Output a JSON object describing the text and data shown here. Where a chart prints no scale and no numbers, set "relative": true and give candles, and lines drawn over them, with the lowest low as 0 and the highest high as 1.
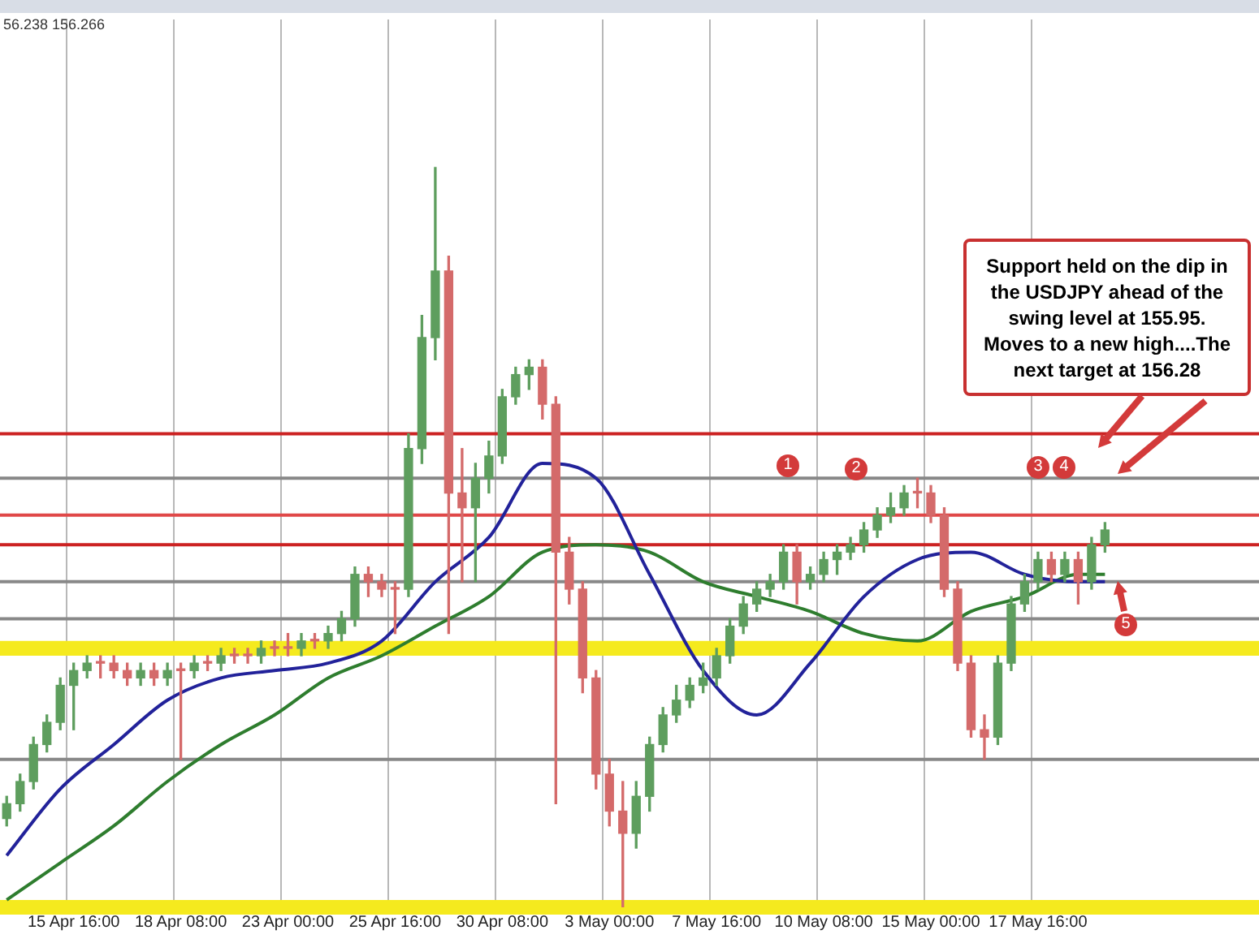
{
  "chart_data": {
    "type": "candlestick",
    "relative": true,
    "legend": false,
    "grid": "x",
    "categories": [
      null,
      null,
      null,
      null,
      null,
      "15 Apr 16:00",
      null,
      null,
      null,
      null,
      null,
      null,
      null,
      "18 Apr 08:00",
      null,
      null,
      null,
      null,
      null,
      null,
      null,
      "23 Apr 00:00",
      null,
      null,
      null,
      null,
      null,
      null,
      null,
      "25 Apr 16:00",
      null,
      null,
      null,
      null,
      null,
      null,
      null,
      "30 Apr 08:00",
      null,
      null,
      null,
      null,
      null,
      null,
      null,
      "3 May 00:00",
      null,
      null,
      null,
      null,
      null,
      null,
      null,
      "7 May 16:00",
      null,
      null,
      null,
      null,
      null,
      null,
      null,
      "10 May 08:00",
      null,
      null,
      null,
      null,
      null,
      null,
      null,
      "15 May 00:00",
      null,
      null,
      null,
      null,
      null,
      null,
      null,
      "17 May 16:00",
      null,
      null,
      null,
      null,
      null,
      null,
      null,
      null,
      null,
      null,
      null,
      null,
      null,
      null,
      null,
      null
    ],
    "ohlc": [
      [
        0.12,
        0.15,
        0.11,
        0.14
      ],
      [
        0.14,
        0.18,
        0.13,
        0.17
      ],
      [
        0.17,
        0.23,
        0.16,
        0.22
      ],
      [
        0.22,
        0.26,
        0.21,
        0.25
      ],
      [
        0.25,
        0.31,
        0.24,
        0.3
      ],
      [
        0.3,
        0.33,
        0.24,
        0.32
      ],
      [
        0.32,
        0.34,
        0.31,
        0.33
      ],
      [
        0.33,
        0.34,
        0.31,
        0.33
      ],
      [
        0.33,
        0.34,
        0.31,
        0.32
      ],
      [
        0.32,
        0.33,
        0.3,
        0.31
      ],
      [
        0.31,
        0.33,
        0.3,
        0.32
      ],
      [
        0.32,
        0.33,
        0.3,
        0.31
      ],
      [
        0.31,
        0.33,
        0.3,
        0.32
      ],
      [
        0.32,
        0.33,
        0.2,
        0.32
      ],
      [
        0.32,
        0.34,
        0.31,
        0.33
      ],
      [
        0.33,
        0.34,
        0.32,
        0.33
      ],
      [
        0.33,
        0.35,
        0.32,
        0.34
      ],
      [
        0.34,
        0.35,
        0.33,
        0.34
      ],
      [
        0.34,
        0.35,
        0.33,
        0.34
      ],
      [
        0.34,
        0.36,
        0.33,
        0.35
      ],
      [
        0.35,
        0.36,
        0.34,
        0.35
      ],
      [
        0.35,
        0.37,
        0.34,
        0.35
      ],
      [
        0.35,
        0.37,
        0.34,
        0.36
      ],
      [
        0.36,
        0.37,
        0.35,
        0.36
      ],
      [
        0.36,
        0.38,
        0.35,
        0.37
      ],
      [
        0.37,
        0.4,
        0.36,
        0.39
      ],
      [
        0.39,
        0.46,
        0.38,
        0.45
      ],
      [
        0.45,
        0.46,
        0.42,
        0.44
      ],
      [
        0.44,
        0.45,
        0.42,
        0.43
      ],
      [
        0.43,
        0.44,
        0.37,
        0.43
      ],
      [
        0.43,
        0.64,
        0.42,
        0.62
      ],
      [
        0.62,
        0.8,
        0.6,
        0.77
      ],
      [
        0.77,
        1,
        0.74,
        0.86
      ],
      [
        0.86,
        0.88,
        0.37,
        0.56
      ],
      [
        0.56,
        0.62,
        0.44,
        0.54
      ],
      [
        0.54,
        0.6,
        0.44,
        0.58
      ],
      [
        0.58,
        0.63,
        0.56,
        0.61
      ],
      [
        0.61,
        0.7,
        0.6,
        0.69
      ],
      [
        0.69,
        0.73,
        0.68,
        0.72
      ],
      [
        0.72,
        0.74,
        0.7,
        0.73
      ],
      [
        0.73,
        0.74,
        0.66,
        0.68
      ],
      [
        0.68,
        0.69,
        0.14,
        0.48
      ],
      [
        0.48,
        0.5,
        0.41,
        0.43
      ],
      [
        0.43,
        0.44,
        0.29,
        0.31
      ],
      [
        0.31,
        0.32,
        0.16,
        0.18
      ],
      [
        0.18,
        0.2,
        0.11,
        0.13
      ],
      [
        0.13,
        0.17,
        0,
        0.1
      ],
      [
        0.1,
        0.17,
        0.08,
        0.15
      ],
      [
        0.15,
        0.23,
        0.13,
        0.22
      ],
      [
        0.22,
        0.27,
        0.21,
        0.26
      ],
      [
        0.26,
        0.3,
        0.25,
        0.28
      ],
      [
        0.28,
        0.31,
        0.27,
        0.3
      ],
      [
        0.3,
        0.33,
        0.29,
        0.31
      ],
      [
        0.31,
        0.35,
        0.3,
        0.34
      ],
      [
        0.34,
        0.39,
        0.33,
        0.38
      ],
      [
        0.38,
        0.42,
        0.37,
        0.41
      ],
      [
        0.41,
        0.44,
        0.4,
        0.43
      ],
      [
        0.43,
        0.45,
        0.42,
        0.44
      ],
      [
        0.44,
        0.49,
        0.43,
        0.48
      ],
      [
        0.48,
        0.49,
        0.41,
        0.44
      ],
      [
        0.44,
        0.46,
        0.43,
        0.45
      ],
      [
        0.45,
        0.48,
        0.44,
        0.47
      ],
      [
        0.47,
        0.49,
        0.45,
        0.48
      ],
      [
        0.48,
        0.5,
        0.47,
        0.49
      ],
      [
        0.49,
        0.52,
        0.48,
        0.51
      ],
      [
        0.51,
        0.54,
        0.5,
        0.53
      ],
      [
        0.53,
        0.56,
        0.52,
        0.54
      ],
      [
        0.54,
        0.57,
        0.53,
        0.56
      ],
      [
        0.56,
        0.58,
        0.54,
        0.56
      ],
      [
        0.56,
        0.57,
        0.52,
        0.53
      ],
      [
        0.53,
        0.54,
        0.42,
        0.43
      ],
      [
        0.43,
        0.44,
        0.32,
        0.33
      ],
      [
        0.33,
        0.34,
        0.23,
        0.24
      ],
      [
        0.24,
        0.26,
        0.2,
        0.23
      ],
      [
        0.23,
        0.34,
        0.22,
        0.33
      ],
      [
        0.33,
        0.42,
        0.32,
        0.41
      ],
      [
        0.41,
        0.45,
        0.4,
        0.44
      ],
      [
        0.44,
        0.48,
        0.43,
        0.47
      ],
      [
        0.47,
        0.48,
        0.44,
        0.45
      ],
      [
        0.45,
        0.48,
        0.44,
        0.47
      ],
      [
        0.47,
        0.48,
        0.41,
        0.44
      ],
      [
        0.44,
        0.5,
        0.43,
        0.49
      ],
      [
        0.49,
        0.52,
        0.48,
        0.51
      ],
      null,
      null,
      null,
      null,
      null,
      null,
      null,
      null,
      null,
      null,
      null
    ],
    "colors": [
      "#5e9e5e",
      "#5e9e5e",
      "#5e9e5e",
      "#5e9e5e",
      "#5e9e5e",
      "#5e9e5e",
      "#5e9e5e",
      "#d46a6a",
      "#d46a6a",
      "#d46a6a",
      "#5e9e5e",
      "#d46a6a",
      "#5e9e5e",
      "#d46a6a",
      "#5e9e5e",
      "#d46a6a",
      "#5e9e5e",
      "#d46a6a",
      "#d46a6a",
      "#5e9e5e",
      "#d46a6a",
      "#d46a6a",
      "#5e9e5e",
      "#d46a6a",
      "#5e9e5e",
      "#5e9e5e",
      "#5e9e5e",
      "#d46a6a",
      "#d46a6a",
      "#d46a6a",
      "#5e9e5e",
      "#5e9e5e",
      "#5e9e5e",
      "#d46a6a",
      "#d46a6a",
      "#5e9e5e",
      "#5e9e5e",
      "#5e9e5e",
      "#5e9e5e",
      "#5e9e5e",
      "#d46a6a",
      "#d46a6a",
      "#d46a6a",
      "#d46a6a",
      "#d46a6a",
      "#d46a6a",
      "#d46a6a",
      "#5e9e5e",
      "#5e9e5e",
      "#5e9e5e",
      "#5e9e5e",
      "#5e9e5e",
      "#5e9e5e",
      "#5e9e5e",
      "#5e9e5e",
      "#5e9e5e",
      "#5e9e5e",
      "#5e9e5e",
      "#5e9e5e",
      "#d46a6a",
      "#5e9e5e",
      "#5e9e5e",
      "#5e9e5e",
      "#5e9e5e",
      "#5e9e5e",
      "#5e9e5e",
      "#5e9e5e",
      "#5e9e5e",
      "#d46a6a",
      "#d46a6a",
      "#d46a6a",
      "#d46a6a",
      "#d46a6a",
      "#d46a6a",
      "#5e9e5e",
      "#5e9e5e",
      "#5e9e5e",
      "#5e9e5e",
      "#d46a6a",
      "#5e9e5e",
      "#d46a6a",
      "#5e9e5e",
      "#5e9e5e",
      null,
      null,
      null,
      null,
      null,
      null,
      null,
      null,
      null,
      null,
      null
    ],
    "series": [
      {
        "type": "line",
        "color": "#22229a",
        "values": [
          0.07,
          null,
          null,
          null,
          0.16,
          null,
          null,
          null,
          0.22,
          null,
          null,
          null,
          0.28,
          null,
          null,
          null,
          0.31,
          null,
          null,
          null,
          0.32,
          null,
          null,
          null,
          0.33,
          null,
          null,
          null,
          0.36,
          null,
          null,
          null,
          0.44,
          null,
          null,
          null,
          0.5,
          null,
          null,
          null,
          0.6,
          null,
          null,
          null,
          0.58,
          null,
          null,
          null,
          0.45,
          null,
          null,
          null,
          0.32,
          null,
          null,
          null,
          0.26,
          null,
          null,
          null,
          0.33,
          null,
          null,
          null,
          0.42,
          null,
          null,
          null,
          0.47,
          null,
          null,
          null,
          0.48,
          null,
          null,
          null,
          0.45,
          null,
          null,
          null,
          0.44,
          null,
          0.44,
          null,
          null,
          null,
          null,
          null,
          null,
          null,
          null,
          null,
          null,
          null
        ]
      },
      {
        "type": "line",
        "color": "#2e7d2e",
        "values": [
          0.01,
          null,
          null,
          null,
          0.06,
          null,
          null,
          null,
          0.11,
          null,
          null,
          null,
          0.17,
          null,
          null,
          null,
          0.22,
          null,
          null,
          null,
          0.26,
          null,
          null,
          null,
          0.31,
          null,
          null,
          null,
          0.34,
          null,
          null,
          null,
          0.38,
          null,
          null,
          null,
          0.42,
          null,
          null,
          null,
          0.48,
          null,
          null,
          null,
          0.49,
          null,
          null,
          null,
          0.48,
          null,
          null,
          null,
          0.44,
          null,
          null,
          null,
          0.42,
          null,
          null,
          null,
          0.4,
          null,
          null,
          null,
          0.37,
          null,
          null,
          null,
          0.36,
          null,
          null,
          null,
          0.4,
          null,
          null,
          null,
          0.42,
          null,
          null,
          null,
          0.45,
          null,
          0.45,
          null,
          null,
          null,
          null,
          null,
          null,
          null,
          null,
          null,
          null,
          null
        ]
      }
    ],
    "ref_lines": [
      {
        "axis": "y",
        "value": 0.64,
        "color": "#cc2222"
      },
      {
        "axis": "y",
        "value": 0.53,
        "color": "#e04848"
      },
      {
        "axis": "y",
        "value": 0.49,
        "color": "#cc2222"
      },
      {
        "axis": "y",
        "value": 0.58,
        "color": "#888888"
      },
      {
        "axis": "y",
        "value": 0.44,
        "color": "#888888"
      },
      {
        "axis": "y",
        "value": 0.39,
        "color": "#888888"
      },
      {
        "axis": "y",
        "value": 0.2,
        "color": "#888888"
      }
    ],
    "bands": [
      {
        "axis": "y",
        "from": 0.34,
        "to": 0.36,
        "color": "#f5ea1e"
      },
      {
        "axis": "y",
        "from": -0.01,
        "to": 0.01,
        "color": "#f5ea1e"
      }
    ],
    "annotations": [
      "Support held on the dip in the USDJPY ahead of the swing level at 155.95. Moves to a new high....The next target at 156.28",
      "1",
      "2",
      "3",
      "4",
      {
        "text": "5",
        "y": 0.44
      },
      "56.238 156.266"
    ]
  }
}
